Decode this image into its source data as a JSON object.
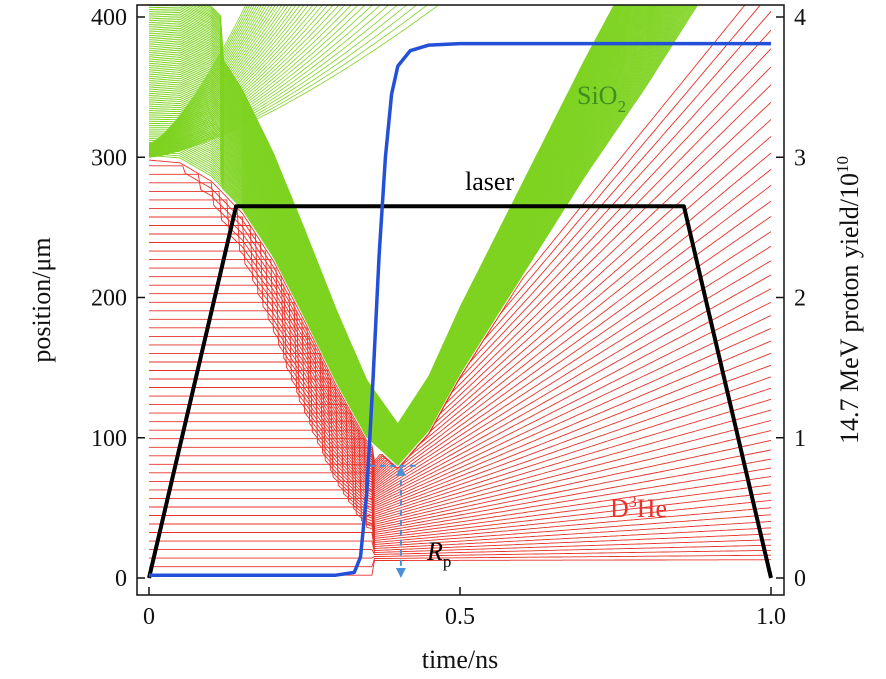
{
  "chart_data": {
    "type": "line",
    "title": "",
    "xlabel": "time/ns",
    "ylabel_left": "position/μm",
    "ylabel_right": "14.7 MeV proton yield/10",
    "ylabel_right_exp": "10",
    "xlim": [
      0,
      1.0
    ],
    "ylim_left": [
      0,
      400
    ],
    "ylim_right": [
      0,
      4
    ],
    "x_ticks": [
      0,
      0.5,
      1.0
    ],
    "x_tick_labels": [
      "0",
      "0.5",
      "1.0"
    ],
    "y_left_ticks": [
      0,
      100,
      200,
      300,
      400
    ],
    "y_left_tick_labels": [
      "0",
      "100",
      "200",
      "300",
      "400"
    ],
    "y_right_ticks": [
      0,
      1,
      2,
      3,
      4
    ],
    "y_right_tick_labels": [
      "0",
      "1",
      "2",
      "3",
      "4"
    ],
    "grid": false,
    "annotations": {
      "sio2": {
        "text": "SiO",
        "sub": "2",
        "color": "#3f8f1f"
      },
      "laser": {
        "text": "laser",
        "color": "#000000"
      },
      "d3he": {
        "pre": "D",
        "sup": "3",
        "post": "He",
        "color": "#e8322a"
      },
      "rp": {
        "text": "R",
        "sub": "p",
        "color": "#000000"
      }
    },
    "laser_pulse": {
      "axis": "left",
      "color": "#000000",
      "points": [
        [
          0,
          0
        ],
        [
          0.14,
          265
        ],
        [
          0.86,
          265
        ],
        [
          1.0,
          0
        ]
      ]
    },
    "proton_yield": {
      "axis": "right",
      "color": "#2450d8",
      "points": [
        [
          0,
          0.02
        ],
        [
          0.3,
          0.02
        ],
        [
          0.33,
          0.04
        ],
        [
          0.34,
          0.15
        ],
        [
          0.35,
          0.6
        ],
        [
          0.36,
          1.4
        ],
        [
          0.37,
          2.3
        ],
        [
          0.38,
          3.0
        ],
        [
          0.39,
          3.45
        ],
        [
          0.4,
          3.65
        ],
        [
          0.42,
          3.76
        ],
        [
          0.45,
          3.8
        ],
        [
          0.5,
          3.81
        ],
        [
          1.0,
          3.81
        ]
      ]
    },
    "rp_marker": {
      "color": "#4a90d9",
      "x": 0.405,
      "y_top": 80,
      "y_bottom": 0,
      "h_from": 0.355,
      "h_to": 0.435
    },
    "series": [
      {
        "role": "d3he",
        "color": "#e8322a",
        "n_lines": 50,
        "initial_radius": [
          2,
          300
        ],
        "stagnation_time": 0.355,
        "min_radius_fraction": 0.04,
        "outer_rebound_speed": 420
      },
      {
        "role": "sio2",
        "color": "#7ed321",
        "n_lines": 90,
        "initial_radius": [
          300,
          420
        ],
        "boundary_radius": 300,
        "stagnation_time": 0.4,
        "stagnation_radius": 80
      }
    ]
  }
}
